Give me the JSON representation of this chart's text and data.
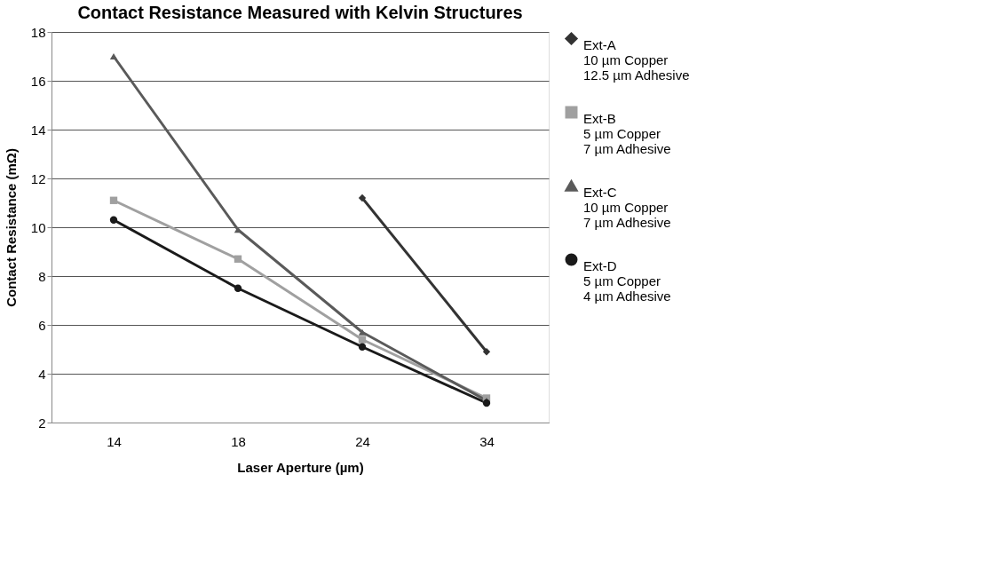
{
  "chart_data": {
    "type": "line",
    "title": "Contact Resistance Measured with Kelvin Structures",
    "xlabel": "Laser Aperture (µm)",
    "ylabel": "Contact Resistance  (mΩ)",
    "categories": [
      "14",
      "18",
      "24",
      "34"
    ],
    "series": [
      {
        "name": "Ext-A\n10 µm Copper\n12.5 µm Adhesive",
        "color": "#333333",
        "marker": "diamond",
        "values": [
          null,
          null,
          11.2,
          4.9
        ]
      },
      {
        "name": "Ext-B\n5 µm Copper\n7 µm Adhesive",
        "color": "#a0a0a0",
        "marker": "square",
        "values": [
          11.1,
          8.7,
          5.4,
          3.0
        ]
      },
      {
        "name": "Ext-C\n10 µm Copper\n7 µm Adhesive",
        "color": "#5a5a5a",
        "marker": "triangle",
        "values": [
          17,
          9.9,
          5.7,
          2.9
        ]
      },
      {
        "name": "Ext-D\n5 µm Copper\n4 µm Adhesive",
        "color": "#1a1a1a",
        "marker": "circle",
        "values": [
          10.3,
          7.5,
          5.1,
          2.8
        ]
      }
    ],
    "ylim": [
      2,
      18
    ],
    "yticks": [
      2,
      4,
      6,
      8,
      10,
      12,
      14,
      16,
      18
    ],
    "grid": "y",
    "legend": "right",
    "line_style": "solid"
  }
}
